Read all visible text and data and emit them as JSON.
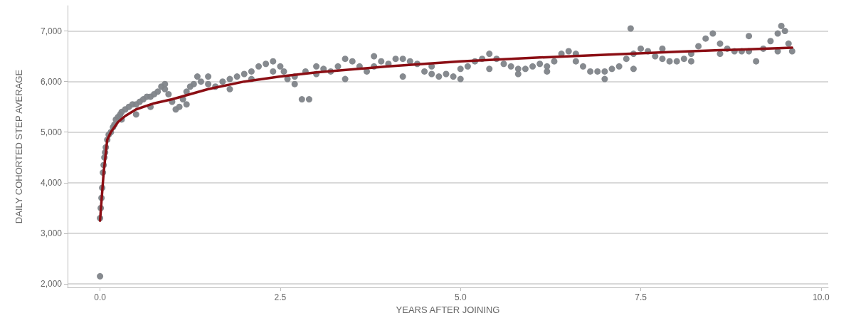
{
  "chart_data": {
    "type": "scatter",
    "xlabel": "YEARS AFTER JOINING",
    "ylabel": "DAILY COHORTED STEP AVERAGE",
    "xlim": [
      -0.45,
      10.1
    ],
    "xticks": [
      {
        "value": 0,
        "label": "0.0"
      },
      2.5,
      {
        "value": 5,
        "label": "5.0"
      },
      7.5,
      {
        "value": 10,
        "label": "10.0"
      }
    ],
    "ylim": [
      1930,
      7500
    ],
    "yticks": [
      {
        "value": 2000,
        "label": "2,000"
      },
      {
        "value": 3000,
        "label": "3,000"
      },
      {
        "value": 4000,
        "label": "4,000"
      },
      {
        "value": 5000,
        "label": "5,000"
      },
      {
        "value": 6000,
        "label": "6,000"
      },
      {
        "value": 7000,
        "label": "7,000"
      }
    ],
    "grid": "y",
    "marker": "circle",
    "series": [
      {
        "color": "#7f8489",
        "x": [
          0.0,
          0.0,
          0.01,
          0.02,
          0.03,
          0.04,
          0.05,
          0.06,
          0.07,
          0.08,
          0.1,
          0.12,
          0.15,
          0.18,
          0.2,
          0.22,
          0.25,
          0.28,
          0.3,
          0.35,
          0.4,
          0.45,
          0.5,
          0.55,
          0.6,
          0.65,
          0.7,
          0.75,
          0.8,
          0.85,
          0.9,
          0.95,
          1.0,
          1.05,
          1.1,
          1.15,
          1.2,
          1.25,
          1.3,
          1.35,
          1.4,
          1.5,
          1.6,
          1.7,
          1.8,
          1.9,
          2.0,
          2.1,
          2.2,
          2.3,
          2.4,
          2.5,
          2.55,
          2.6,
          2.7,
          2.8,
          2.85,
          2.9,
          3.0,
          3.1,
          3.2,
          3.3,
          3.4,
          3.5,
          3.6,
          3.7,
          3.8,
          3.9,
          4.0,
          4.1,
          4.2,
          4.3,
          4.4,
          4.5,
          4.6,
          4.7,
          4.8,
          4.9,
          5.0,
          5.1,
          5.2,
          5.3,
          5.4,
          5.5,
          5.6,
          5.7,
          5.8,
          5.9,
          6.0,
          6.1,
          6.2,
          6.3,
          6.4,
          6.5,
          6.6,
          6.7,
          6.8,
          6.9,
          7.0,
          7.1,
          7.2,
          7.3,
          7.36,
          7.4,
          7.5,
          7.6,
          7.7,
          7.8,
          7.9,
          8.0,
          8.1,
          8.2,
          8.3,
          8.4,
          8.5,
          8.6,
          8.7,
          8.8,
          8.9,
          9.0,
          9.1,
          9.2,
          9.3,
          9.4,
          9.45,
          9.5,
          9.55,
          9.6,
          0.3,
          0.5,
          0.7,
          0.9,
          1.2,
          1.5,
          1.8,
          2.1,
          2.4,
          2.7,
          3.0,
          3.4,
          3.8,
          4.2,
          4.6,
          5.0,
          5.4,
          5.8,
          6.2,
          6.6,
          7.0,
          7.4,
          7.8,
          8.2,
          8.6,
          9.0,
          9.4
        ],
        "values": [
          2150,
          3300,
          3500,
          3700,
          3900,
          4200,
          4350,
          4500,
          4600,
          4700,
          4850,
          4950,
          5000,
          5100,
          5150,
          5250,
          5300,
          5350,
          5400,
          5450,
          5500,
          5550,
          5550,
          5600,
          5650,
          5700,
          5700,
          5750,
          5800,
          5900,
          5850,
          5750,
          5600,
          5450,
          5500,
          5650,
          5800,
          5900,
          5950,
          6100,
          6000,
          5950,
          5900,
          6000,
          6050,
          6100,
          6150,
          6200,
          6300,
          6350,
          6400,
          6300,
          6200,
          6050,
          6100,
          5650,
          6200,
          5650,
          6300,
          6250,
          6200,
          6300,
          6450,
          6400,
          6300,
          6200,
          6300,
          6400,
          6350,
          6450,
          6450,
          6400,
          6350,
          6200,
          6150,
          6100,
          6150,
          6100,
          6250,
          6300,
          6400,
          6450,
          6550,
          6450,
          6350,
          6300,
          6250,
          6250,
          6300,
          6350,
          6300,
          6400,
          6550,
          6600,
          6400,
          6300,
          6200,
          6200,
          6200,
          6250,
          6300,
          6450,
          7050,
          6550,
          6650,
          6600,
          6500,
          6450,
          6400,
          6400,
          6450,
          6550,
          6700,
          6850,
          6950,
          6750,
          6650,
          6600,
          6600,
          6600,
          6400,
          6650,
          6800,
          6950,
          7100,
          7000,
          6750,
          6600,
          5250,
          5350,
          5500,
          5950,
          5550,
          6100,
          5850,
          6050,
          6200,
          5950,
          6150,
          6050,
          6500,
          6100,
          6300,
          6050,
          6250,
          6150,
          6200,
          6550,
          6050,
          6250,
          6650,
          6400,
          6550,
          6900,
          6600
        ]
      },
      {
        "type": "line",
        "color": "#8b0e14",
        "marker": "none",
        "line_style": "solid",
        "x": [
          0.0,
          0.05,
          0.1,
          0.15,
          0.25,
          0.35,
          0.5,
          0.75,
          1.0,
          1.5,
          2.0,
          2.5,
          3.0,
          4.0,
          5.0,
          6.0,
          7.0,
          8.0,
          9.0,
          9.6
        ],
        "values": [
          3250,
          4200,
          4850,
          5000,
          5200,
          5320,
          5450,
          5570,
          5650,
          5850,
          6000,
          6100,
          6180,
          6300,
          6400,
          6470,
          6530,
          6590,
          6640,
          6670
        ]
      }
    ]
  }
}
